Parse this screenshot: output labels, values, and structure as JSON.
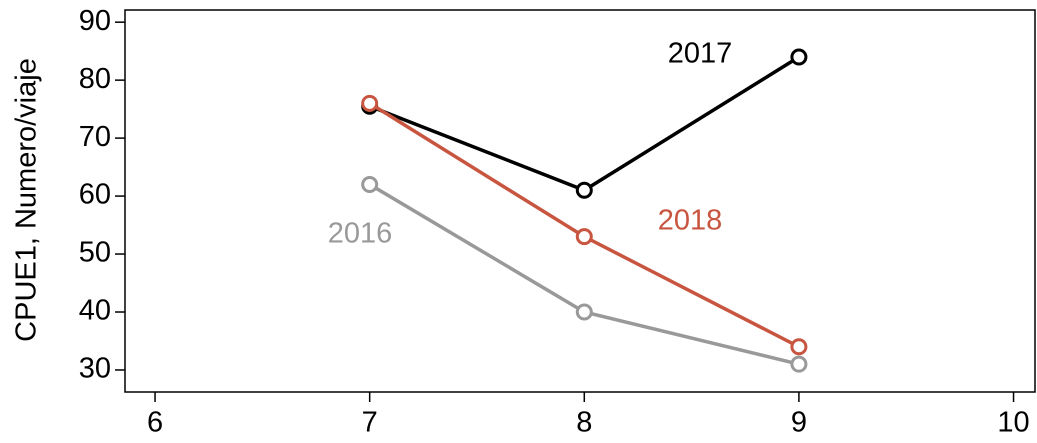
{
  "chart_data": {
    "type": "line",
    "y_label": "CPUE1, Numero/viaje",
    "x": [
      7,
      8,
      9
    ],
    "series": [
      {
        "name": "2016",
        "color": "#999999",
        "values": [
          62,
          40,
          31
        ]
      },
      {
        "name": "2017",
        "color": "#000000",
        "values": [
          75.5,
          61,
          84
        ]
      },
      {
        "name": "2018",
        "color": "#c8553f",
        "values": [
          76,
          53,
          34
        ]
      }
    ],
    "xlim": [
      5.86,
      10.1
    ],
    "xticks": [
      6,
      7,
      8,
      9,
      10
    ],
    "ylim": [
      26.2,
      92.1
    ],
    "yticks": [
      30,
      40,
      50,
      60,
      70,
      80,
      90
    ]
  }
}
